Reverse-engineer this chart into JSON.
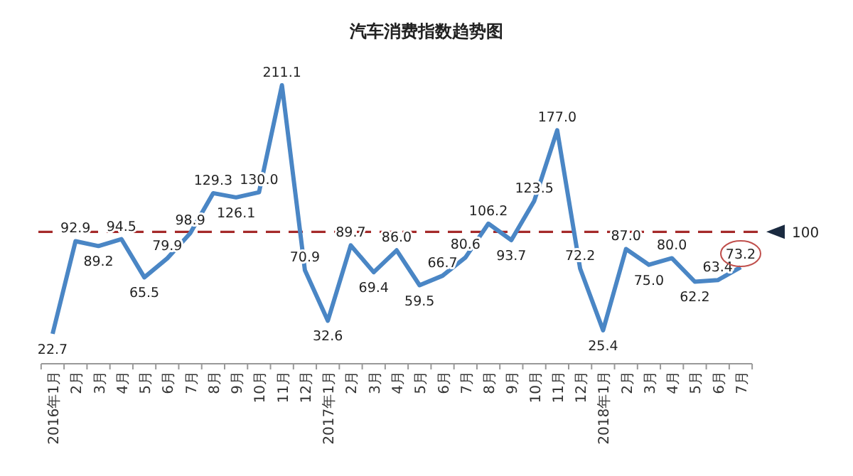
{
  "chart_data": {
    "type": "line",
    "title": "汽车消费指数趋势图",
    "categories": [
      "2016年1月",
      "2月",
      "3月",
      "4月",
      "5月",
      "6月",
      "7月",
      "8月",
      "9月",
      "10月",
      "11月",
      "12月",
      "2017年1月",
      "2月",
      "3月",
      "4月",
      "5月",
      "6月",
      "7月",
      "8月",
      "9月",
      "10月",
      "11月",
      "12月",
      "2018年1月",
      "2月",
      "3月",
      "4月",
      "5月",
      "6月",
      "7月"
    ],
    "series": [
      {
        "color": "#4a86c5",
        "values": [
          22.7,
          92.9,
          89.2,
          94.5,
          65.5,
          79.9,
          98.9,
          129.3,
          126.1,
          130.0,
          211.1,
          70.9,
          32.6,
          89.7,
          69.4,
          86.0,
          59.5,
          66.7,
          80.6,
          106.2,
          93.7,
          123.5,
          177.0,
          72.2,
          25.4,
          87.0,
          75.0,
          80.0,
          62.2,
          63.4,
          73.2
        ],
        "value_labels": [
          "22.7",
          "92.9",
          "89.2",
          "94.5",
          "65.5",
          "79.9",
          "98.9",
          "129.3",
          "126.1",
          "130.0",
          "211.1",
          "70.9",
          "32.6",
          "89.7",
          "69.4",
          "86.0",
          "59.5",
          "66.7",
          "80.6",
          "106.2",
          "93.7",
          "123.5",
          "177.0",
          "72.2",
          "25.4",
          "87.0",
          "75.0",
          "80.0",
          "62.2",
          "63.4",
          "73.2"
        ]
      }
    ],
    "marker": "none",
    "line_style": "solid",
    "ref_lines": [
      {
        "axis": "y",
        "value": 100,
        "label": "100",
        "color": "#a52a2a",
        "line_style": "dashed"
      }
    ]
  }
}
